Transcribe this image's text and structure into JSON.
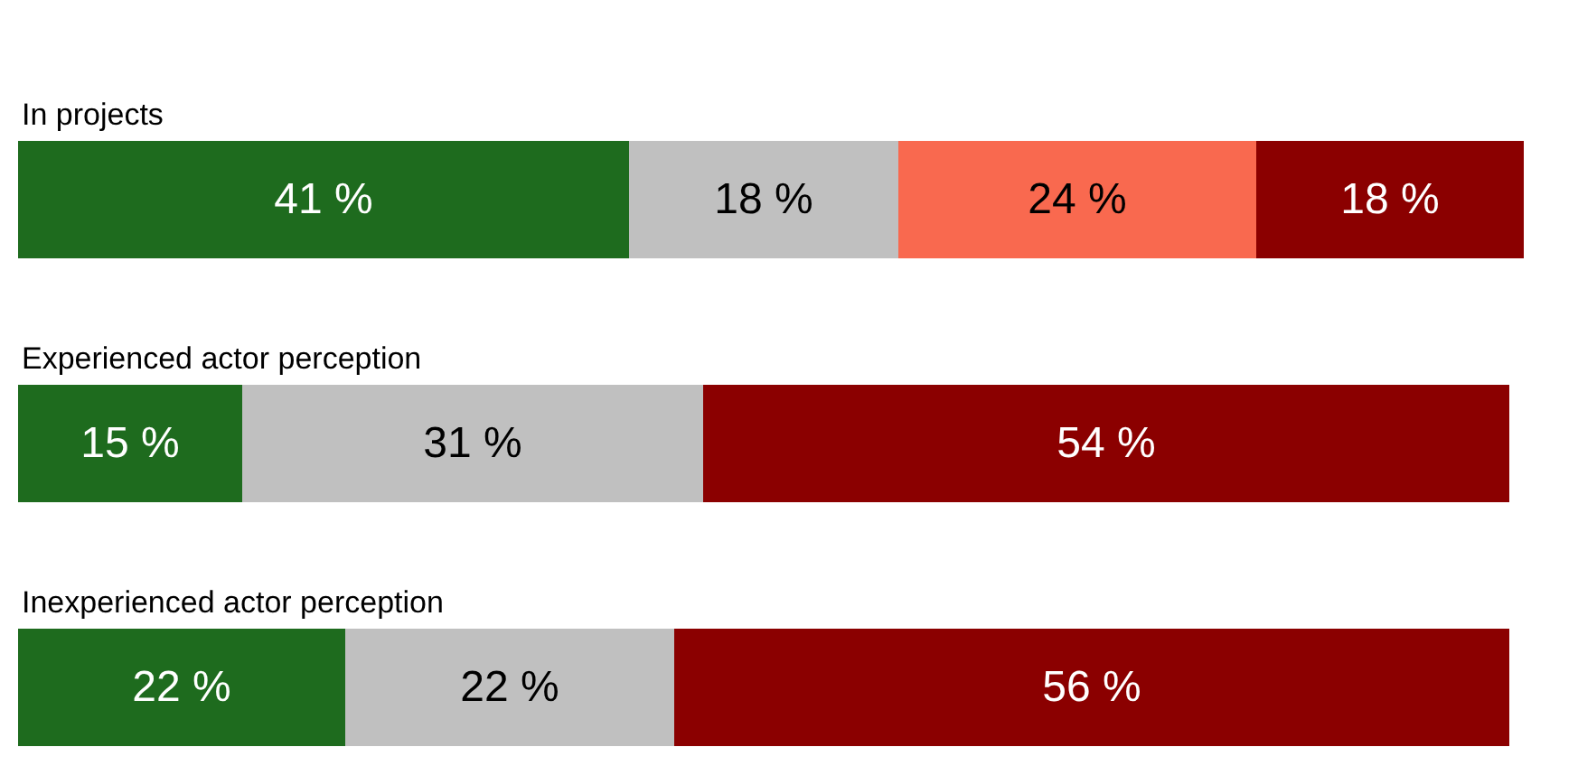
{
  "chart_data": {
    "type": "bar",
    "orientation": "horizontal",
    "stacked": true,
    "tick_labels": false,
    "categories": [
      "In projects",
      "Experienced actor perception",
      "Inexperienced actor perception"
    ],
    "series": [
      {
        "color": "#1e6b1e",
        "values": [
          41,
          15,
          22
        ],
        "value_labels": [
          "41 %",
          "15 %",
          "22 %"
        ]
      },
      {
        "color": "#c0c0c0",
        "values": [
          18,
          31,
          22
        ],
        "value_labels": [
          "18 %",
          "31 %",
          "22 %"
        ]
      },
      {
        "color": "#f9694f",
        "values": [
          24,
          null,
          null
        ],
        "value_labels": [
          "24 %",
          null,
          null
        ]
      },
      {
        "color": "#8b0000",
        "values": [
          18,
          54,
          56
        ],
        "value_labels": [
          "18 %",
          "54 %",
          "56 %"
        ]
      }
    ]
  }
}
